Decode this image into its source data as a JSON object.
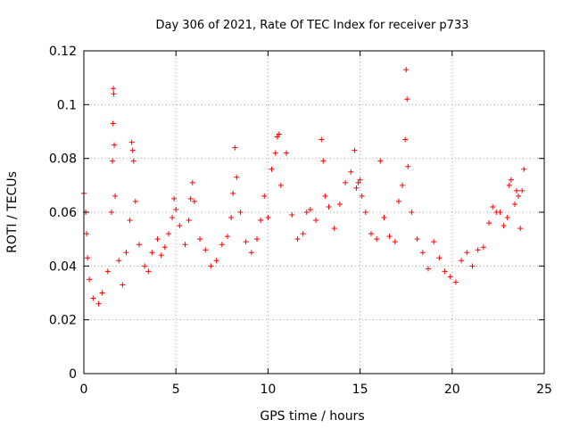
{
  "chart_data": {
    "type": "scatter",
    "title": "Day 306 of 2021, Rate Of TEC Index for receiver p733",
    "xlabel": "GPS time / hours",
    "ylabel": "ROTI / TECUs",
    "xlim": [
      0,
      25
    ],
    "ylim": [
      0,
      0.12
    ],
    "x_ticks": [
      0,
      5,
      10,
      15,
      20,
      25
    ],
    "x_tick_labels": [
      "0",
      "5",
      "10",
      "15",
      "20",
      "25"
    ],
    "y_ticks": [
      0,
      0.02,
      0.04,
      0.06,
      0.08,
      0.1,
      0.12
    ],
    "y_tick_labels": [
      "0",
      "0.02",
      "0.04",
      "0.06",
      "0.08",
      "0.1",
      "0.12"
    ],
    "grid": true,
    "marker": "+",
    "color": "#ff0000",
    "series": [
      {
        "x": [
          0.0,
          0.1,
          0.15,
          0.2,
          0.3,
          0.5,
          0.8,
          1.0,
          1.3,
          1.5,
          1.55,
          1.58,
          1.6,
          1.62,
          1.65,
          1.7,
          1.9,
          2.1,
          2.3,
          2.5,
          2.6,
          2.65,
          2.7,
          2.8,
          3.0,
          3.3,
          3.5,
          3.7,
          4.0,
          4.2,
          4.4,
          4.6,
          4.8,
          4.9,
          5.0,
          5.2,
          5.5,
          5.7,
          5.8,
          5.9,
          6.0,
          6.3,
          6.6,
          6.9,
          7.2,
          7.5,
          7.8,
          8.0,
          8.1,
          8.2,
          8.3,
          8.5,
          8.8,
          9.1,
          9.4,
          9.6,
          9.8,
          10.0,
          10.2,
          10.4,
          10.5,
          10.6,
          10.7,
          11.0,
          11.3,
          11.6,
          11.9,
          12.1,
          12.3,
          12.6,
          12.9,
          13.0,
          13.1,
          13.3,
          13.6,
          13.9,
          14.2,
          14.5,
          14.7,
          14.8,
          14.9,
          15.0,
          15.1,
          15.3,
          15.6,
          15.9,
          16.1,
          16.3,
          16.6,
          16.9,
          17.1,
          17.3,
          17.45,
          17.5,
          17.55,
          17.6,
          17.8,
          18.1,
          18.4,
          18.7,
          19.0,
          19.3,
          19.6,
          19.9,
          20.2,
          20.5,
          20.8,
          21.1,
          21.4,
          21.7,
          22.0,
          22.2,
          22.4,
          22.6,
          22.8,
          23.0,
          23.1,
          23.2,
          23.4,
          23.5,
          23.6,
          23.7,
          23.8,
          23.9
        ],
        "y": [
          0.067,
          0.06,
          0.052,
          0.043,
          0.035,
          0.028,
          0.026,
          0.03,
          0.038,
          0.06,
          0.079,
          0.093,
          0.106,
          0.104,
          0.085,
          0.066,
          0.042,
          0.033,
          0.045,
          0.057,
          0.086,
          0.083,
          0.079,
          0.064,
          0.048,
          0.04,
          0.038,
          0.045,
          0.05,
          0.044,
          0.047,
          0.052,
          0.058,
          0.065,
          0.061,
          0.055,
          0.048,
          0.057,
          0.065,
          0.071,
          0.064,
          0.05,
          0.046,
          0.04,
          0.042,
          0.048,
          0.051,
          0.058,
          0.067,
          0.084,
          0.073,
          0.06,
          0.049,
          0.045,
          0.05,
          0.057,
          0.066,
          0.058,
          0.076,
          0.082,
          0.088,
          0.089,
          0.07,
          0.082,
          0.059,
          0.05,
          0.052,
          0.06,
          0.061,
          0.057,
          0.087,
          0.079,
          0.066,
          0.062,
          0.054,
          0.063,
          0.071,
          0.075,
          0.083,
          0.069,
          0.071,
          0.072,
          0.066,
          0.06,
          0.052,
          0.05,
          0.079,
          0.058,
          0.051,
          0.049,
          0.064,
          0.07,
          0.087,
          0.113,
          0.102,
          0.077,
          0.06,
          0.05,
          0.045,
          0.039,
          0.049,
          0.043,
          0.038,
          0.036,
          0.034,
          0.042,
          0.045,
          0.04,
          0.046,
          0.047,
          0.056,
          0.062,
          0.06,
          0.06,
          0.055,
          0.058,
          0.07,
          0.072,
          0.063,
          0.068,
          0.066,
          0.054,
          0.068,
          0.076
        ]
      }
    ]
  }
}
